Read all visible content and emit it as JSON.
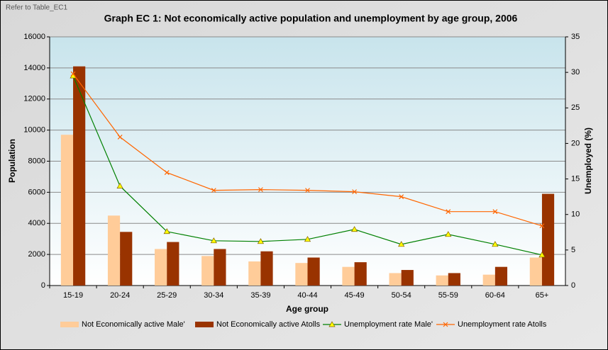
{
  "note": "Refer to Table_EC1",
  "chart_data": {
    "type": "combo",
    "title": "Graph EC 1: Not economically active population and unemployment by age group, 2006",
    "x_label": "Age group",
    "y_label": "Population",
    "y2_label": "Unemployed (%)",
    "categories": [
      "15-19",
      "20-24",
      "25-29",
      "30-34",
      "35-39",
      "40-44",
      "45-49",
      "50-54",
      "55-59",
      "60-64",
      "65+"
    ],
    "series": [
      {
        "name": "Not Economically active Male'",
        "type": "bar",
        "color": "#ffcc99",
        "values": [
          9700,
          4500,
          2350,
          1900,
          1550,
          1450,
          1200,
          800,
          650,
          700,
          1800
        ]
      },
      {
        "name": "Not Economically active Atolls",
        "type": "bar",
        "color": "#993300",
        "values": [
          14100,
          3450,
          2800,
          2350,
          2200,
          1800,
          1500,
          1000,
          800,
          1200,
          5900
        ]
      },
      {
        "name": "Unemployment rate Male'",
        "type": "line",
        "axis": "y2",
        "color": "#008000",
        "marker": "triangle",
        "marker_color": "#ffff00",
        "values": [
          29.5,
          14.0,
          7.6,
          6.3,
          6.2,
          6.5,
          7.9,
          5.8,
          7.2,
          5.8,
          4.3
        ]
      },
      {
        "name": "Unemployment rate Atolls",
        "type": "line",
        "axis": "y2",
        "color": "#ff6600",
        "marker": "x",
        "values": [
          29.8,
          20.9,
          15.9,
          13.4,
          13.5,
          13.4,
          13.2,
          12.5,
          10.4,
          10.4,
          8.4
        ]
      }
    ],
    "ylim": [
      0,
      16000
    ],
    "yticks": [
      0,
      2000,
      4000,
      6000,
      8000,
      10000,
      12000,
      14000,
      16000
    ],
    "y2lim": [
      0,
      35
    ],
    "y2ticks": [
      0,
      5,
      10,
      15,
      20,
      25,
      30,
      35
    ],
    "grid": true,
    "legend": "bottom"
  }
}
